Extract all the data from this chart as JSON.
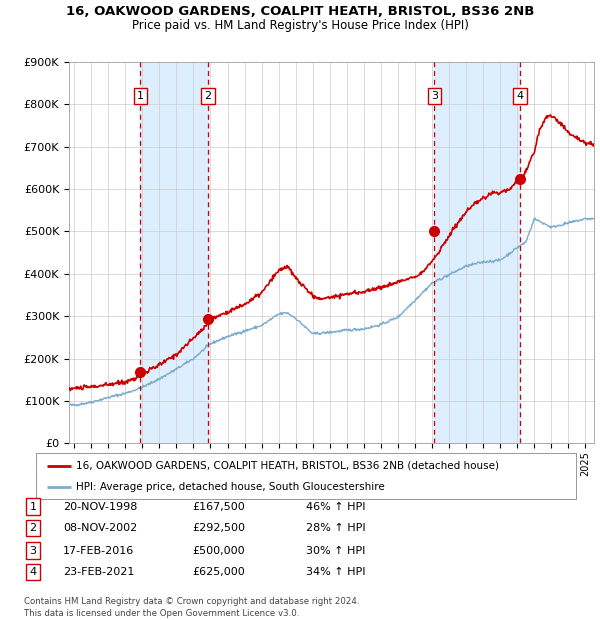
{
  "title1": "16, OAKWOOD GARDENS, COALPIT HEATH, BRISTOL, BS36 2NB",
  "title2": "Price paid vs. HM Land Registry's House Price Index (HPI)",
  "ylim": [
    0,
    900000
  ],
  "xlim_start": 1994.7,
  "xlim_end": 2025.5,
  "yticks": [
    0,
    100000,
    200000,
    300000,
    400000,
    500000,
    600000,
    700000,
    800000,
    900000
  ],
  "ytick_labels": [
    "£0",
    "£100K",
    "£200K",
    "£300K",
    "£400K",
    "£500K",
    "£600K",
    "£700K",
    "£800K",
    "£900K"
  ],
  "xticks": [
    1995,
    1996,
    1997,
    1998,
    1999,
    2000,
    2001,
    2002,
    2003,
    2004,
    2005,
    2006,
    2007,
    2008,
    2009,
    2010,
    2011,
    2012,
    2013,
    2014,
    2015,
    2016,
    2017,
    2018,
    2019,
    2020,
    2021,
    2022,
    2023,
    2024,
    2025
  ],
  "sale_color": "#cc0000",
  "hpi_color": "#7aaccc",
  "shade_color": "#ddeeff",
  "grid_color": "#cccccc",
  "bg_color": "#ffffff",
  "legend_label_sale": "16, OAKWOOD GARDENS, COALPIT HEATH, BRISTOL, BS36 2NB (detached house)",
  "legend_label_hpi": "HPI: Average price, detached house, South Gloucestershire",
  "footer": "Contains HM Land Registry data © Crown copyright and database right 2024.\nThis data is licensed under the Open Government Licence v3.0.",
  "sales": [
    {
      "num": 1,
      "date_dec": 1998.89,
      "price": 167500,
      "label": "1"
    },
    {
      "num": 2,
      "date_dec": 2002.86,
      "price": 292500,
      "label": "2"
    },
    {
      "num": 3,
      "date_dec": 2016.13,
      "price": 500000,
      "label": "3"
    },
    {
      "num": 4,
      "date_dec": 2021.15,
      "price": 625000,
      "label": "4"
    }
  ],
  "table_rows": [
    {
      "num": "1",
      "date": "20-NOV-1998",
      "price": "£167,500",
      "hpi": "46% ↑ HPI"
    },
    {
      "num": "2",
      "date": "08-NOV-2002",
      "price": "£292,500",
      "hpi": "28% ↑ HPI"
    },
    {
      "num": "3",
      "date": "17-FEB-2016",
      "price": "£500,000",
      "hpi": "30% ↑ HPI"
    },
    {
      "num": "4",
      "date": "23-FEB-2021",
      "price": "£625,000",
      "hpi": "34% ↑ HPI"
    }
  ],
  "hpi_key_times": [
    1995,
    1996,
    1997,
    1998,
    1999,
    2000,
    2001,
    2002,
    2003,
    2004,
    2005,
    2006,
    2007,
    2007.5,
    2008,
    2009,
    2010,
    2011,
    2012,
    2013,
    2014,
    2015,
    2016,
    2017,
    2018,
    2019,
    2020,
    2021,
    2021.5,
    2022,
    2023,
    2024,
    2025
  ],
  "hpi_key_vals": [
    90000,
    97000,
    108000,
    118000,
    132000,
    152000,
    175000,
    200000,
    235000,
    252000,
    265000,
    278000,
    305000,
    308000,
    295000,
    258000,
    262000,
    267000,
    270000,
    280000,
    298000,
    338000,
    378000,
    398000,
    418000,
    428000,
    432000,
    462000,
    475000,
    530000,
    510000,
    520000,
    530000
  ],
  "sale_key_times": [
    1994.7,
    1995,
    1996,
    1997,
    1998,
    1998.5,
    1999,
    2000,
    2001,
    2002,
    2002.5,
    2003,
    2004,
    2005,
    2006,
    2007,
    2007.5,
    2008,
    2009,
    2009.5,
    2010,
    2011,
    2012,
    2013,
    2014,
    2015,
    2015.5,
    2016,
    2016.5,
    2017,
    2017.5,
    2018,
    2018.5,
    2019,
    2019.5,
    2020,
    2020.5,
    2021,
    2021.5,
    2022,
    2022.3,
    2022.7,
    2023,
    2023.5,
    2024,
    2024.5,
    2025,
    2025.5
  ],
  "sale_key_vals": [
    128000,
    130000,
    133000,
    138000,
    145000,
    152000,
    163000,
    185000,
    210000,
    248000,
    268000,
    293000,
    310000,
    328000,
    355000,
    408000,
    418000,
    390000,
    348000,
    340000,
    345000,
    352000,
    358000,
    368000,
    380000,
    395000,
    405000,
    430000,
    458000,
    490000,
    520000,
    545000,
    565000,
    578000,
    590000,
    592000,
    600000,
    618000,
    640000,
    690000,
    740000,
    770000,
    775000,
    755000,
    735000,
    720000,
    710000,
    705000
  ]
}
